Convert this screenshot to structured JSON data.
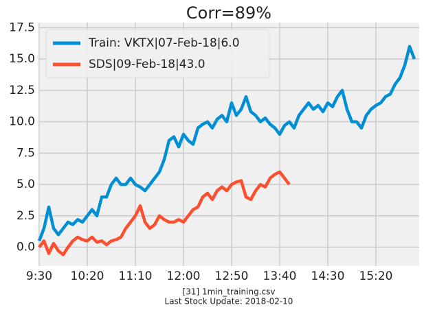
{
  "chart_data": {
    "type": "line",
    "title": "Corr=89%",
    "caption_lines": [
      "[31] 1min_training.csv",
      "Last Stock Update: 2018-02-10"
    ],
    "x": [
      0,
      5,
      10,
      15,
      20,
      25,
      30,
      35,
      40,
      45,
      50,
      55,
      60,
      65,
      70,
      75,
      80,
      85,
      90,
      95,
      100,
      105,
      110,
      115,
      120,
      125,
      130,
      135,
      140,
      145,
      150,
      155,
      160,
      165,
      170,
      175,
      180,
      185,
      190,
      195,
      200,
      205,
      210,
      215,
      220,
      225,
      230,
      235,
      240,
      245,
      250,
      255,
      260,
      265,
      270,
      275,
      280,
      285,
      290,
      295,
      300,
      305,
      310,
      315,
      320,
      325,
      330,
      335,
      340,
      345,
      350,
      355,
      360,
      365,
      370,
      375,
      380,
      385,
      390
    ],
    "series": [
      {
        "name": "Train: VKTX|07-Feb-18|6.0",
        "color": "#008fd5",
        "values": [
          0.5,
          1.5,
          3.2,
          1.5,
          1.0,
          1.5,
          2.0,
          1.8,
          2.2,
          2.0,
          2.5,
          3.0,
          2.5,
          4.0,
          4.0,
          5.0,
          5.5,
          5.0,
          5.0,
          5.5,
          5.0,
          4.8,
          4.5,
          5.0,
          5.5,
          6.0,
          7.0,
          8.5,
          8.8,
          8.0,
          9.0,
          8.5,
          8.2,
          9.5,
          9.8,
          10.0,
          9.5,
          10.2,
          10.5,
          10.0,
          11.5,
          10.5,
          11.0,
          12.0,
          10.8,
          10.5,
          10.0,
          10.3,
          9.8,
          9.5,
          9.0,
          9.7,
          10.0,
          9.5,
          10.5,
          11.0,
          11.5,
          11.0,
          11.3,
          10.8,
          11.5,
          11.2,
          12.0,
          12.5,
          11.0,
          10.0,
          10.0,
          9.5,
          10.5,
          11.0,
          11.3,
          11.5,
          12.0,
          12.2,
          13.0,
          13.5,
          14.5,
          16.0,
          15.0
        ]
      },
      {
        "name": "SDS|09-Feb-18|43.0",
        "color": "#fc4f30",
        "values": [
          0.0,
          0.5,
          -0.5,
          0.3,
          -0.3,
          -0.6,
          0.0,
          0.5,
          0.8,
          0.6,
          0.5,
          0.8,
          0.4,
          0.5,
          0.2,
          0.5,
          0.6,
          0.8,
          1.5,
          2.0,
          2.5,
          3.3,
          2.0,
          1.5,
          1.8,
          2.5,
          2.2,
          2.0,
          2.0,
          2.2,
          2.0,
          2.5,
          3.0,
          3.2,
          4.0,
          4.3,
          3.8,
          4.5,
          4.8,
          4.5,
          5.0,
          5.2,
          5.3,
          4.0,
          3.8,
          4.5,
          5.0,
          4.8,
          5.5,
          5.8,
          6.0,
          5.5,
          5.0,
          null,
          null,
          null,
          null,
          null,
          null,
          null,
          null,
          null,
          null,
          null,
          null,
          null,
          null,
          null,
          null,
          null,
          null,
          null,
          null,
          null,
          null,
          null,
          null,
          null,
          null
        ]
      }
    ],
    "xlim": [
      0,
      395
    ],
    "xticks": [
      {
        "value": 0,
        "label": "9:30"
      },
      {
        "value": 50,
        "label": "10:20"
      },
      {
        "value": 100,
        "label": "11:10"
      },
      {
        "value": 150,
        "label": "12:00"
      },
      {
        "value": 200,
        "label": "12:50"
      },
      {
        "value": 250,
        "label": "13:40"
      },
      {
        "value": 300,
        "label": "14:30"
      },
      {
        "value": 350,
        "label": "15:20"
      }
    ],
    "ylim": [
      -1.5,
      17.9
    ],
    "yticks": [
      {
        "value": 0,
        "label": "0.0"
      },
      2.5,
      {
        "value": 5,
        "label": "5.0"
      },
      7.5,
      {
        "value": 10,
        "label": "10.0"
      },
      12.5,
      {
        "value": 15,
        "label": "15.0"
      },
      17.5
    ],
    "grid": true,
    "legend": "upper-left"
  }
}
